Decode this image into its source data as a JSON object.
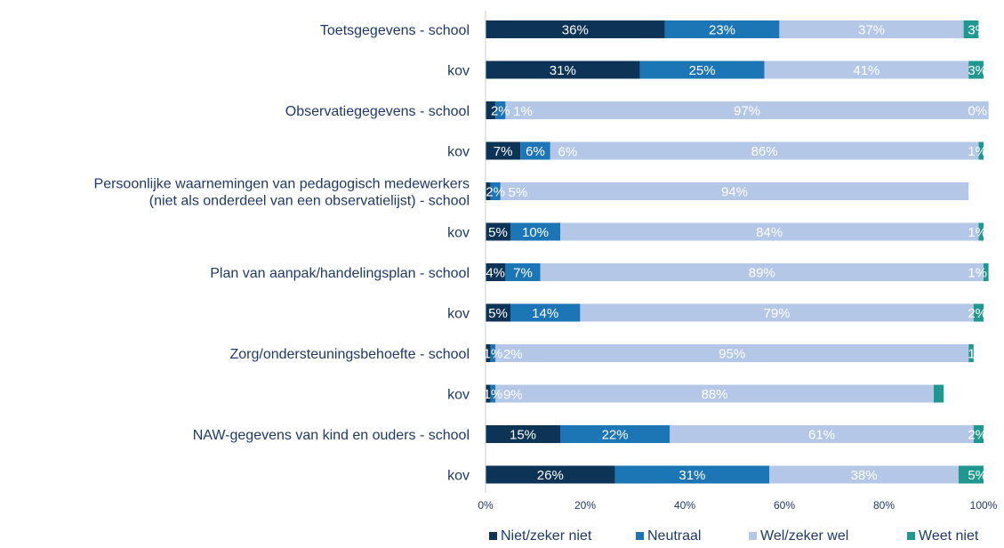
{
  "chart_data": {
    "type": "bar",
    "orientation": "horizontal",
    "stacked": "percent",
    "categories": [
      [
        "Toetsgegevens - school"
      ],
      [
        "kov"
      ],
      [
        "Observatiegegevens - school"
      ],
      [
        "kov"
      ],
      [
        "Persoonlijke waarnemingen van pedagogisch medewerkers",
        "(niet als onderdeel van een observatielijst) - school"
      ],
      [
        "kov"
      ],
      [
        "Plan van aanpak/handelingsplan - school"
      ],
      [
        "kov"
      ],
      [
        "Zorg/ondersteuningsbehoefte - school"
      ],
      [
        "kov"
      ],
      [
        "NAW-gegevens van kind en ouders - school"
      ],
      [
        "kov"
      ]
    ],
    "series": [
      {
        "name": "Niet/zeker niet",
        "color": "#0d3457",
        "values": [
          36,
          31,
          2,
          7,
          1,
          5,
          4,
          5,
          1,
          1,
          15,
          26
        ],
        "labels": [
          "36%",
          "31%",
          "",
          "7%",
          "",
          "5%",
          "4%",
          "5%",
          "",
          "",
          "15%",
          "26%"
        ]
      },
      {
        "name": "Neutraal",
        "color": "#1c75b5",
        "values": [
          23,
          25,
          2,
          6,
          2,
          10,
          7,
          14,
          1,
          1,
          22,
          31
        ],
        "labels": [
          "23%",
          "25%",
          "2%",
          "6%",
          "2%",
          "10%",
          "7%",
          "14%",
          "1%",
          "1%",
          "22%",
          "31%"
        ]
      },
      {
        "name": "Wel/zeker wel",
        "color": "#b4c7e7",
        "values": [
          37,
          41,
          97,
          86,
          94,
          84,
          89,
          79,
          95,
          88,
          61,
          38
        ],
        "labels": [
          "37%",
          "41%",
          "97%",
          "86%",
          "94%",
          "84%",
          "89%",
          "79%",
          "95%",
          "88%",
          "61%",
          "38%"
        ]
      },
      {
        "name": "Weet niet",
        "color": "#21988f",
        "values": [
          3,
          3,
          0,
          1,
          0,
          1,
          1,
          2,
          1,
          2,
          2,
          5
        ],
        "labels": [
          "3%",
          "3%",
          "0%",
          "1%",
          "0%",
          "1%",
          "1%",
          "2%",
          "1%",
          "2%",
          "2%",
          "5%"
        ]
      }
    ],
    "extra_labels": [
      {
        "row": 2,
        "text": "1%"
      },
      {
        "row": 3,
        "text": "6%"
      },
      {
        "row": 4,
        "text": "5%"
      },
      {
        "row": 8,
        "text": "2%"
      },
      {
        "row": 9,
        "text": "9%"
      }
    ],
    "x_ticks": [
      "0%",
      "20%",
      "40%",
      "60%",
      "80%",
      "100%"
    ],
    "xlim": [
      0,
      100
    ],
    "grid": false,
    "legend_position": "bottom"
  }
}
